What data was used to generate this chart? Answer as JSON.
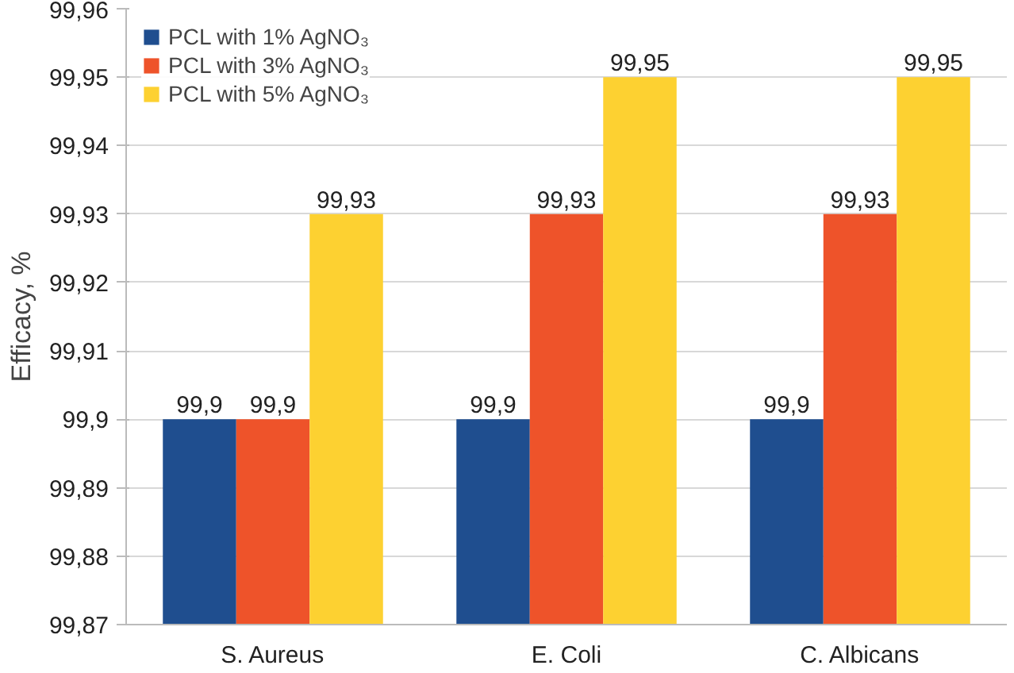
{
  "chart_data": {
    "type": "bar",
    "ylabel": "Efficacy, %",
    "categories": [
      "S. Aureus",
      "E. Coli",
      "C. Albicans"
    ],
    "series": [
      {
        "name": "PCL with 1% AgNO₃",
        "color": "#1f4e8f",
        "values": [
          99.9,
          99.9,
          99.9
        ],
        "value_labels": [
          "99,9",
          "99,9",
          "99,9"
        ]
      },
      {
        "name": "PCL with 3% AgNO₃",
        "color": "#ee532a",
        "values": [
          99.9,
          99.93,
          99.93
        ],
        "value_labels": [
          "99,9",
          "99,93",
          "99,93"
        ]
      },
      {
        "name": "PCL with 5% AgNO₃",
        "color": "#fdd131",
        "values": [
          99.93,
          99.95,
          99.95
        ],
        "value_labels": [
          "99,93",
          "99,95",
          "99,95"
        ]
      }
    ],
    "ylim": [
      99.87,
      99.96
    ],
    "yticks": [
      {
        "value": 99.87,
        "label": "99,87"
      },
      {
        "value": 99.88,
        "label": "99,88"
      },
      {
        "value": 99.89,
        "label": "99,89"
      },
      {
        "value": 99.9,
        "label": "99,9"
      },
      {
        "value": 99.91,
        "label": "99,91"
      },
      {
        "value": 99.92,
        "label": "99,92"
      },
      {
        "value": 99.93,
        "label": "99,93"
      },
      {
        "value": 99.94,
        "label": "99,94"
      },
      {
        "value": 99.95,
        "label": "99,95"
      },
      {
        "value": 99.96,
        "label": "99,96"
      }
    ],
    "grid": "y",
    "legend": "top left"
  }
}
